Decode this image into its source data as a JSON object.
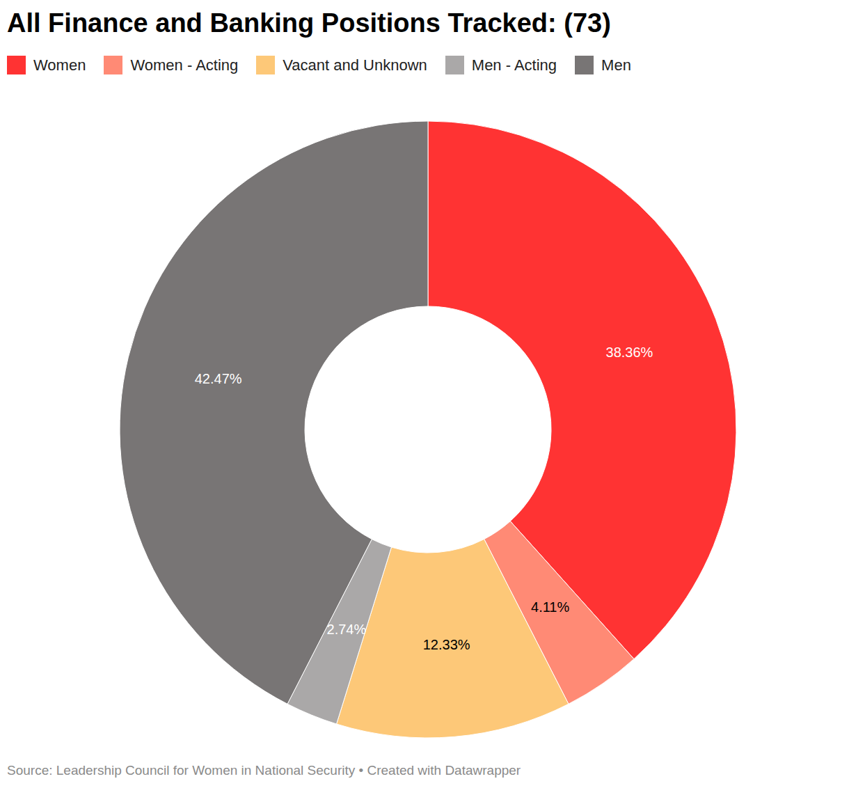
{
  "chart_data": {
    "type": "pie",
    "title": "All Finance and Banking Positions Tracked: (73)",
    "categories": [
      "Women",
      "Women - Acting",
      "Vacant and Unknown",
      "Men - Acting",
      "Men"
    ],
    "values": [
      38.36,
      4.11,
      12.33,
      2.74,
      42.47
    ],
    "value_labels": [
      "38.36%",
      "4.11%",
      "12.33%",
      "2.74%",
      "42.47%"
    ],
    "colors": [
      "#ff3333",
      "#ff8a75",
      "#fdc878",
      "#aaa8a8",
      "#787575"
    ],
    "data_labels": true,
    "legend": "top left",
    "source": "Source: Leadership Council for Women in National Security • Created with Datawrapper"
  }
}
